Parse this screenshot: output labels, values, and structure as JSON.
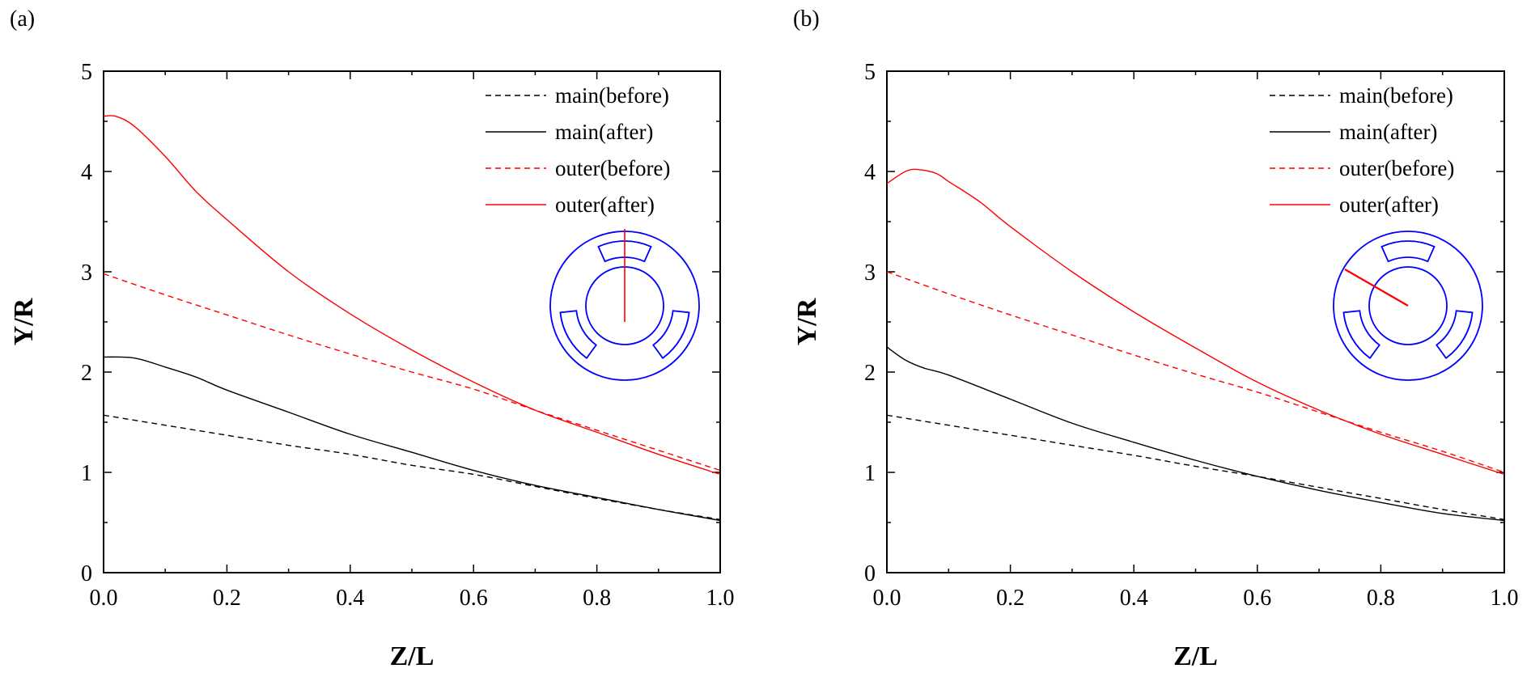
{
  "colors": {
    "main": "#000000",
    "outer": "#ff0000",
    "inset": "#0000ff",
    "inset_line": "#ff0000"
  },
  "chart_data": [
    {
      "type": "line",
      "panel_label": "(a)",
      "xlabel": "Z/L",
      "ylabel": "Y/R",
      "xlim": [
        0.0,
        1.0
      ],
      "ylim": [
        0,
        5
      ],
      "xticks": [
        "0.0",
        "0.2",
        "0.4",
        "0.6",
        "0.8",
        "1.0"
      ],
      "yticks": [
        "0",
        "1",
        "2",
        "3",
        "4",
        "5"
      ],
      "legend_position": "top-right",
      "inset": {
        "description_icon": "cross-section-icon",
        "line_angle_deg": 90
      },
      "series": [
        {
          "name": "main(before)",
          "color": "#000000",
          "dashed": true,
          "x": [
            0,
            0.1,
            0.2,
            0.3,
            0.4,
            0.5,
            0.6,
            0.7,
            0.8,
            0.9,
            1.0
          ],
          "y": [
            1.57,
            1.47,
            1.37,
            1.27,
            1.18,
            1.07,
            0.98,
            0.86,
            0.74,
            0.63,
            0.53
          ]
        },
        {
          "name": "main(after)",
          "color": "#000000",
          "dashed": false,
          "x": [
            0,
            0.05,
            0.1,
            0.15,
            0.2,
            0.3,
            0.4,
            0.5,
            0.6,
            0.7,
            0.8,
            0.9,
            1.0
          ],
          "y": [
            2.15,
            2.14,
            2.05,
            1.95,
            1.82,
            1.6,
            1.38,
            1.2,
            1.02,
            0.87,
            0.75,
            0.63,
            0.52
          ]
        },
        {
          "name": "outer(before)",
          "color": "#ff0000",
          "dashed": true,
          "x": [
            0,
            0.1,
            0.2,
            0.3,
            0.4,
            0.5,
            0.6,
            0.7,
            0.8,
            0.9,
            1.0
          ],
          "y": [
            2.98,
            2.77,
            2.57,
            2.37,
            2.18,
            2.0,
            1.83,
            1.62,
            1.42,
            1.22,
            1.02
          ]
        },
        {
          "name": "outer(after)",
          "color": "#ff0000",
          "dashed": false,
          "x": [
            0,
            0.02,
            0.05,
            0.1,
            0.15,
            0.2,
            0.3,
            0.4,
            0.5,
            0.6,
            0.7,
            0.8,
            0.9,
            1.0
          ],
          "y": [
            4.55,
            4.55,
            4.45,
            4.15,
            3.8,
            3.52,
            3.0,
            2.58,
            2.22,
            1.9,
            1.62,
            1.4,
            1.18,
            0.98
          ]
        }
      ]
    },
    {
      "type": "line",
      "panel_label": "(b)",
      "xlabel": "Z/L",
      "ylabel": "Y/R",
      "xlim": [
        0.0,
        1.0
      ],
      "ylim": [
        0,
        5
      ],
      "xticks": [
        "0.0",
        "0.2",
        "0.4",
        "0.6",
        "0.8",
        "1.0"
      ],
      "yticks": [
        "0",
        "1",
        "2",
        "3",
        "4",
        "5"
      ],
      "legend_position": "top-right",
      "inset": {
        "description_icon": "cross-section-icon",
        "line_angle_deg": 150
      },
      "series": [
        {
          "name": "main(before)",
          "color": "#000000",
          "dashed": true,
          "x": [
            0,
            0.1,
            0.2,
            0.3,
            0.4,
            0.5,
            0.6,
            0.7,
            0.8,
            0.9,
            1.0
          ],
          "y": [
            1.57,
            1.47,
            1.37,
            1.27,
            1.17,
            1.06,
            0.96,
            0.85,
            0.74,
            0.63,
            0.53
          ]
        },
        {
          "name": "main(after)",
          "color": "#000000",
          "dashed": false,
          "x": [
            0,
            0.03,
            0.06,
            0.1,
            0.2,
            0.3,
            0.4,
            0.5,
            0.6,
            0.7,
            0.8,
            0.9,
            1.0
          ],
          "y": [
            2.25,
            2.12,
            2.04,
            1.97,
            1.73,
            1.49,
            1.3,
            1.12,
            0.96,
            0.82,
            0.7,
            0.59,
            0.52
          ]
        },
        {
          "name": "outer(before)",
          "color": "#ff0000",
          "dashed": true,
          "x": [
            0,
            0.1,
            0.2,
            0.3,
            0.4,
            0.5,
            0.6,
            0.7,
            0.8,
            0.9,
            1.0
          ],
          "y": [
            3.0,
            2.78,
            2.57,
            2.37,
            2.17,
            1.98,
            1.8,
            1.6,
            1.4,
            1.21,
            1.0
          ]
        },
        {
          "name": "outer(after)",
          "color": "#ff0000",
          "dashed": false,
          "x": [
            0,
            0.03,
            0.05,
            0.08,
            0.1,
            0.15,
            0.2,
            0.3,
            0.4,
            0.5,
            0.6,
            0.7,
            0.8,
            0.9,
            1.0
          ],
          "y": [
            3.88,
            4.0,
            4.02,
            3.98,
            3.9,
            3.7,
            3.45,
            3.0,
            2.6,
            2.24,
            1.9,
            1.62,
            1.38,
            1.18,
            0.98
          ]
        }
      ]
    }
  ]
}
